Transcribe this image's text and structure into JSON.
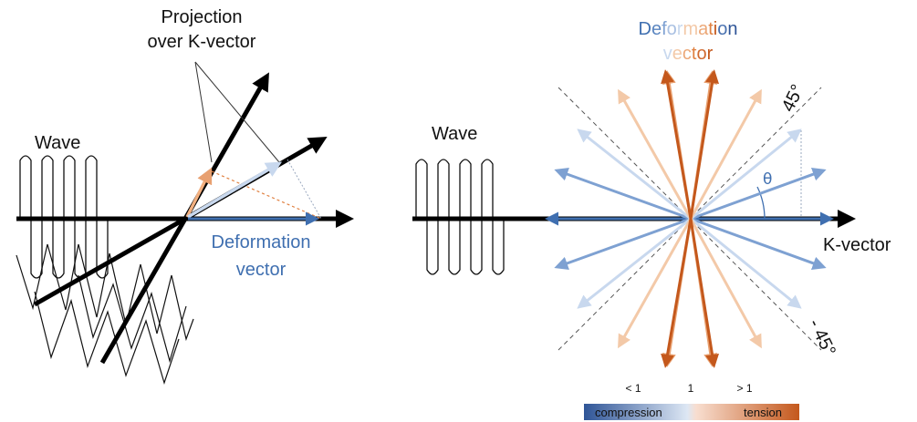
{
  "left_panel": {
    "wave_label": "Wave",
    "projection_label_line1": "Projection",
    "projection_label_line2": "over K-vector",
    "deformation_label_line1": "Deformation",
    "deformation_label_line2": "vector"
  },
  "right_panel": {
    "wave_label": "Wave",
    "title_line1_chars": [
      "D",
      "e",
      "f",
      "o",
      "r",
      "m",
      "a",
      "t",
      "i",
      "o",
      "n"
    ],
    "title_line2_chars": [
      "v",
      "e",
      "c",
      "t",
      "o",
      "r"
    ],
    "kvector_label": "K-vector",
    "angle_pos_label": "45°",
    "angle_neg_label": "- 45°",
    "theta_label": "θ"
  },
  "scale": {
    "label_lt": "< 1",
    "label_eq": "1",
    "label_gt": "> 1",
    "compression_label": "compression",
    "tension_label": "tension"
  },
  "colors": {
    "k_vector": "#000000",
    "compression_strong": "#3f6fb0",
    "compression_light": "#c8d8ee",
    "tension_light": "#f3c9a8",
    "tension_strong": "#c4581c",
    "guide_dashed": "#555555",
    "projection_dotted": "#e08040"
  }
}
